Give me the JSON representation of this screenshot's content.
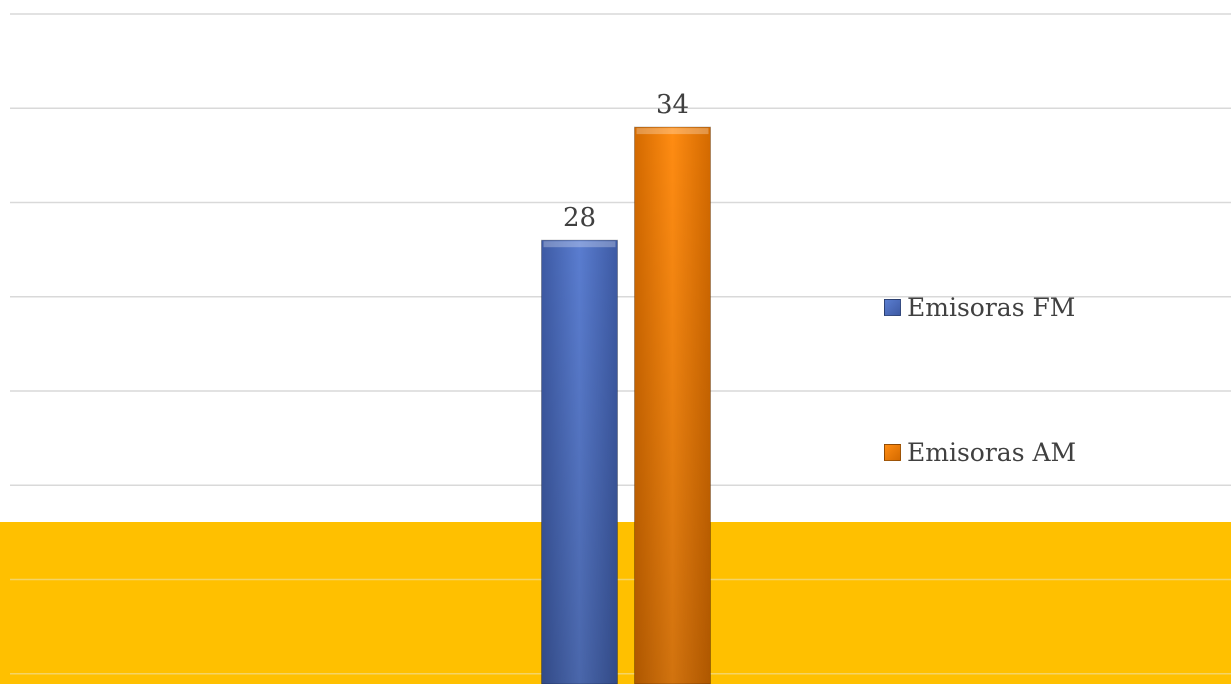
{
  "chart_data": {
    "type": "bar",
    "categories": [
      ""
    ],
    "series": [
      {
        "name": "Emisoras FM",
        "values": [
          28
        ],
        "color": "#4f6fc0"
      },
      {
        "name": "Emisoras AM",
        "values": [
          34
        ],
        "color": "#f27f00"
      }
    ],
    "ylim": [
      0,
      40
    ],
    "grid": true,
    "legend_position": "right",
    "background_band_color": "#ffc000"
  }
}
